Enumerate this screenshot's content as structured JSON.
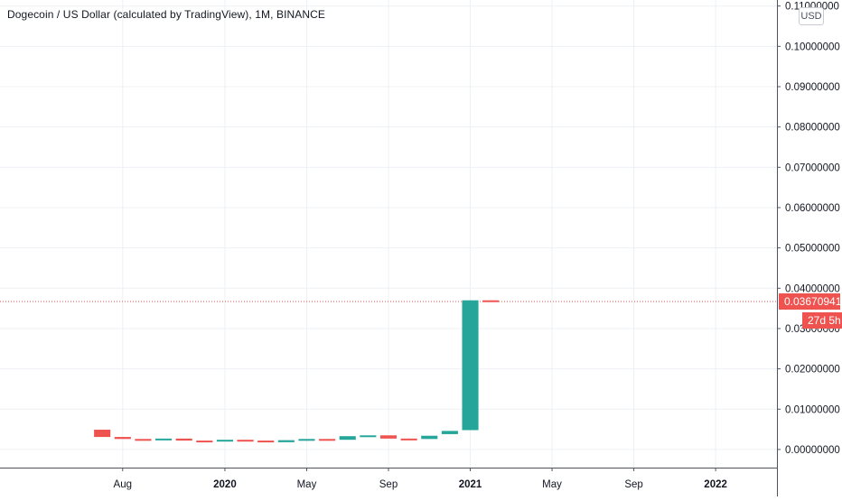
{
  "header": {
    "title": "Dogecoin / US Dollar (calculated by TradingView), 1M, BINANCE",
    "currency": "USD"
  },
  "price_axis": {
    "last_price_label": "0.03670941",
    "countdown_label": "27d 5h"
  },
  "colors": {
    "up": "#26a69a",
    "down": "#ef5350",
    "grid": "#edf0f4",
    "axis_line": "#50535e",
    "price_line": "#ef5350"
  },
  "chart_data": {
    "type": "candlestick",
    "title": "Dogecoin / US Dollar (calculated by TradingView), 1M, BINANCE",
    "interval": "1M",
    "ylim": [
      -0.0045,
      0.1115
    ],
    "y_ticks": [
      {
        "value": 0.11,
        "label": "0.11000000"
      },
      {
        "value": 0.1,
        "label": "0.10000000"
      },
      {
        "value": 0.09,
        "label": "0.09000000"
      },
      {
        "value": 0.08,
        "label": "0.08000000"
      },
      {
        "value": 0.07,
        "label": "0.07000000"
      },
      {
        "value": 0.06,
        "label": "0.06000000"
      },
      {
        "value": 0.05,
        "label": "0.05000000"
      },
      {
        "value": 0.04,
        "label": "0.04000000"
      },
      {
        "value": 0.03,
        "label": "0.03000000"
      },
      {
        "value": 0.02,
        "label": "0.02000000"
      },
      {
        "value": 0.01,
        "label": "0.01000000"
      },
      {
        "value": 0.0,
        "label": "0.00000000"
      }
    ],
    "x_ticks": [
      {
        "label": "Aug",
        "date": "2019-08",
        "year": false
      },
      {
        "label": "2020",
        "date": "2020-01",
        "year": true
      },
      {
        "label": "May",
        "date": "2020-05",
        "year": false
      },
      {
        "label": "Sep",
        "date": "2020-09",
        "year": false
      },
      {
        "label": "2021",
        "date": "2021-01",
        "year": true
      },
      {
        "label": "May",
        "date": "2021-05",
        "year": false
      },
      {
        "label": "Sep",
        "date": "2021-09",
        "year": false
      },
      {
        "label": "2022",
        "date": "2022-01",
        "year": true
      }
    ],
    "x_range": [
      "2019-02",
      "2022-04"
    ],
    "last_price": 0.03670941,
    "candles": [
      {
        "date": "2019-07",
        "open": 0.0049,
        "close": 0.0031
      },
      {
        "date": "2019-08",
        "open": 0.0031,
        "close": 0.0026
      },
      {
        "date": "2019-09",
        "open": 0.0026,
        "close": 0.0024
      },
      {
        "date": "2019-10",
        "open": 0.0024,
        "close": 0.0027
      },
      {
        "date": "2019-11",
        "open": 0.0027,
        "close": 0.0022
      },
      {
        "date": "2019-12",
        "open": 0.0022,
        "close": 0.002
      },
      {
        "date": "2020-01",
        "open": 0.002,
        "close": 0.0024
      },
      {
        "date": "2020-02",
        "open": 0.0024,
        "close": 0.0022
      },
      {
        "date": "2020-03",
        "open": 0.0022,
        "close": 0.0018
      },
      {
        "date": "2020-04",
        "open": 0.0018,
        "close": 0.0023
      },
      {
        "date": "2020-05",
        "open": 0.0023,
        "close": 0.0026
      },
      {
        "date": "2020-06",
        "open": 0.0026,
        "close": 0.0024
      },
      {
        "date": "2020-07",
        "open": 0.0024,
        "close": 0.0033
      },
      {
        "date": "2020-08",
        "open": 0.0033,
        "close": 0.0035
      },
      {
        "date": "2020-09",
        "open": 0.0035,
        "close": 0.0027
      },
      {
        "date": "2020-10",
        "open": 0.0027,
        "close": 0.0026
      },
      {
        "date": "2020-11",
        "open": 0.0026,
        "close": 0.0034
      },
      {
        "date": "2020-12",
        "open": 0.0038,
        "close": 0.0046
      },
      {
        "date": "2021-01",
        "open": 0.0048,
        "close": 0.037
      },
      {
        "date": "2021-02",
        "open": 0.037,
        "close": 0.03670941
      }
    ]
  }
}
